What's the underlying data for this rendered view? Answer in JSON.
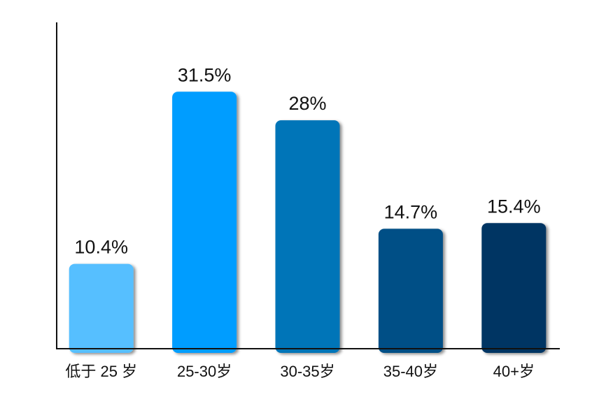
{
  "chart_data": {
    "type": "bar",
    "categories": [
      "低于 25 岁",
      "25-30岁",
      "30-35岁",
      "35-40岁",
      "40+岁"
    ],
    "values": [
      10.4,
      31.5,
      28,
      14.7,
      15.4
    ],
    "value_labels": [
      "10.4%",
      "31.5%",
      "28%",
      "14.7%",
      "15.4%"
    ],
    "colors": [
      "#56bfff",
      "#009dff",
      "#0074b8",
      "#004f86",
      "#003463"
    ],
    "ylim": [
      0,
      40
    ]
  }
}
